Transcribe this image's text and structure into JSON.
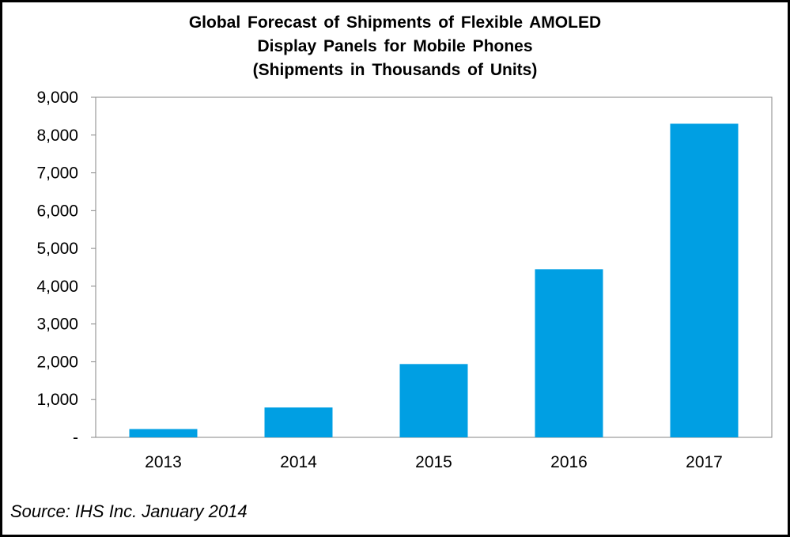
{
  "chart_data": {
    "type": "bar",
    "title_lines": [
      "Global Forecast of Shipments of Flexible AMOLED",
      "Display Panels for Mobile Phones",
      "(Shipments in Thousands of Units)"
    ],
    "categories": [
      "2013",
      "2014",
      "2015",
      "2016",
      "2017"
    ],
    "values": [
      220,
      790,
      1940,
      4450,
      8300
    ],
    "ylim": [
      0,
      9000
    ],
    "yticks": [
      0,
      1000,
      2000,
      3000,
      4000,
      5000,
      6000,
      7000,
      8000,
      9000
    ],
    "ytick_labels": [
      "-",
      "1,000",
      "2,000",
      "3,000",
      "4,000",
      "5,000",
      "6,000",
      "7,000",
      "8,000",
      "9,000"
    ],
    "xlabel": "",
    "ylabel": "",
    "grid": false,
    "legend": "none",
    "bar_color": "#009fe3"
  },
  "source": "Source: IHS Inc. January 2014"
}
